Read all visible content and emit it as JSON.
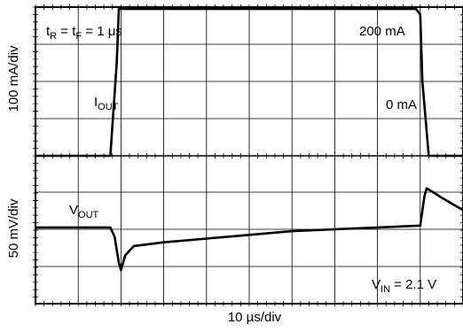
{
  "chart_data": {
    "type": "line",
    "xlabel": "10 µs/div",
    "x_divisions": 10,
    "grid": true,
    "panels": [
      {
        "ylabel": "100 mA/div",
        "series": [
          {
            "name": "IOUT",
            "x_div": [
              0,
              1.75,
              1.9,
              1.95,
              3,
              6,
              8.9,
              9.0,
              9.05,
              9.2,
              9.5,
              10
            ],
            "y_div": [
              -2.0,
              -2.0,
              0.5,
              1.95,
              1.95,
              1.95,
              1.95,
              1.8,
              0.0,
              -2.0,
              -2.0,
              -2.0
            ]
          }
        ],
        "annotations": {
          "timing": {
            "main1": "t",
            "sub1": "R",
            "main2": " = t",
            "sub2": "F",
            "main3": " = 1 μs"
          },
          "level_high": "200 mA",
          "level_low": "0 mA",
          "signal": {
            "main": "I",
            "sub": "OUT"
          }
        }
      },
      {
        "ylabel": "50 mV/div",
        "series": [
          {
            "name": "VOUT",
            "x_div": [
              0,
              1.75,
              1.85,
              1.95,
              2.0,
              2.1,
              2.3,
              3,
              4,
              5,
              6,
              7,
              8,
              9.0,
              9.1,
              9.15,
              9.3,
              9.5,
              9.8,
              10.1,
              10.4,
              10.7,
              11
            ],
            "y_div": [
              0.05,
              0.05,
              -0.2,
              -0.9,
              -1.1,
              -0.7,
              -0.45,
              -0.35,
              -0.25,
              -0.15,
              -0.05,
              0.0,
              0.05,
              0.1,
              0.9,
              1.1,
              1.0,
              0.85,
              0.65,
              0.45,
              0.3,
              0.15,
              0.0
            ]
          }
        ],
        "annotations": {
          "signal": {
            "main": "V",
            "sub": "OUT"
          },
          "vin": {
            "main": "V",
            "sub": "IN",
            "rest": " = 2.1 V"
          }
        }
      }
    ]
  }
}
